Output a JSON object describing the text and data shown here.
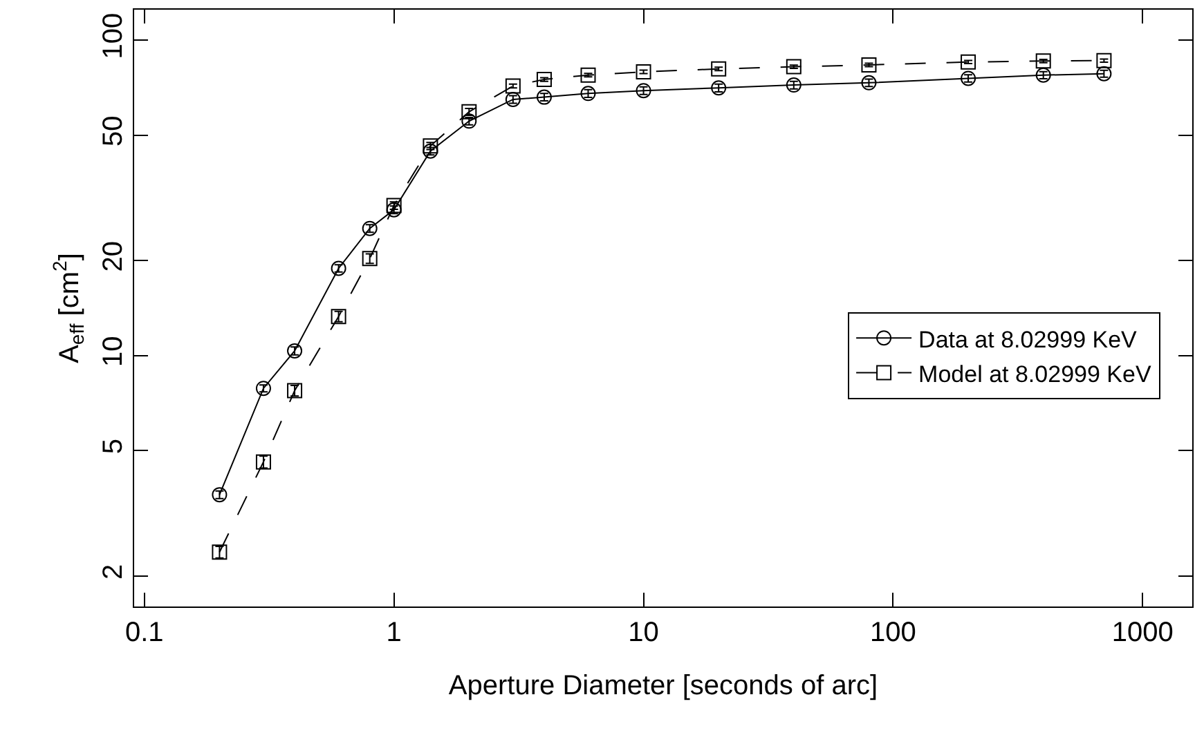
{
  "chart_data": {
    "type": "line",
    "xlabel": "Aperture Diameter [seconds of arc]",
    "ylabel": "A$_{eff}$ [cm$^{2}$]",
    "x": [
      0.2,
      0.3,
      0.4,
      0.6,
      0.8,
      1,
      1.4,
      2,
      3,
      4,
      6,
      10,
      20,
      40,
      80,
      200,
      400,
      700
    ],
    "series": [
      {
        "name": "Data at 8.02999 KeV",
        "color": "#000000",
        "marker": "circle",
        "line_style": "solid",
        "values": [
          3.62,
          7.87,
          10.35,
          18.9,
          25.3,
          29.0,
          44.5,
          55.4,
          64.9,
          66.0,
          67.8,
          69.2,
          70.6,
          72.1,
          73.3,
          75.7,
          77.5,
          78.3
        ],
        "errors": [
          0.1,
          0.2,
          0.3,
          0.5,
          0.7,
          0.8,
          1.2,
          1.5,
          1.8,
          1.8,
          1.9,
          1.9,
          2,
          2,
          2,
          2,
          2,
          2
        ]
      },
      {
        "name": "Model at 8.02999 KeV",
        "color": "#000000",
        "marker": "square",
        "line_style": "dashed",
        "values": [
          2.38,
          4.6,
          7.74,
          13.3,
          20.3,
          29.9,
          46.2,
          59.3,
          71.6,
          75.1,
          77.5,
          79.4,
          81.1,
          82.4,
          83.5,
          85.3,
          85.9,
          86.2
        ],
        "errors": [
          0.1,
          0.2,
          0.3,
          0.5,
          0.7,
          0.8,
          1.2,
          1.5,
          1,
          1,
          1,
          1,
          1,
          1,
          1,
          1,
          1,
          1
        ]
      }
    ],
    "log": "xy",
    "xlim": [
      0.091,
      1580
    ],
    "ylim": [
      1.6,
      125
    ],
    "xticks": [
      0.1,
      1,
      10,
      100,
      1000
    ],
    "yticks": [
      2,
      5,
      10,
      20,
      50,
      100
    ],
    "legend": "right"
  }
}
